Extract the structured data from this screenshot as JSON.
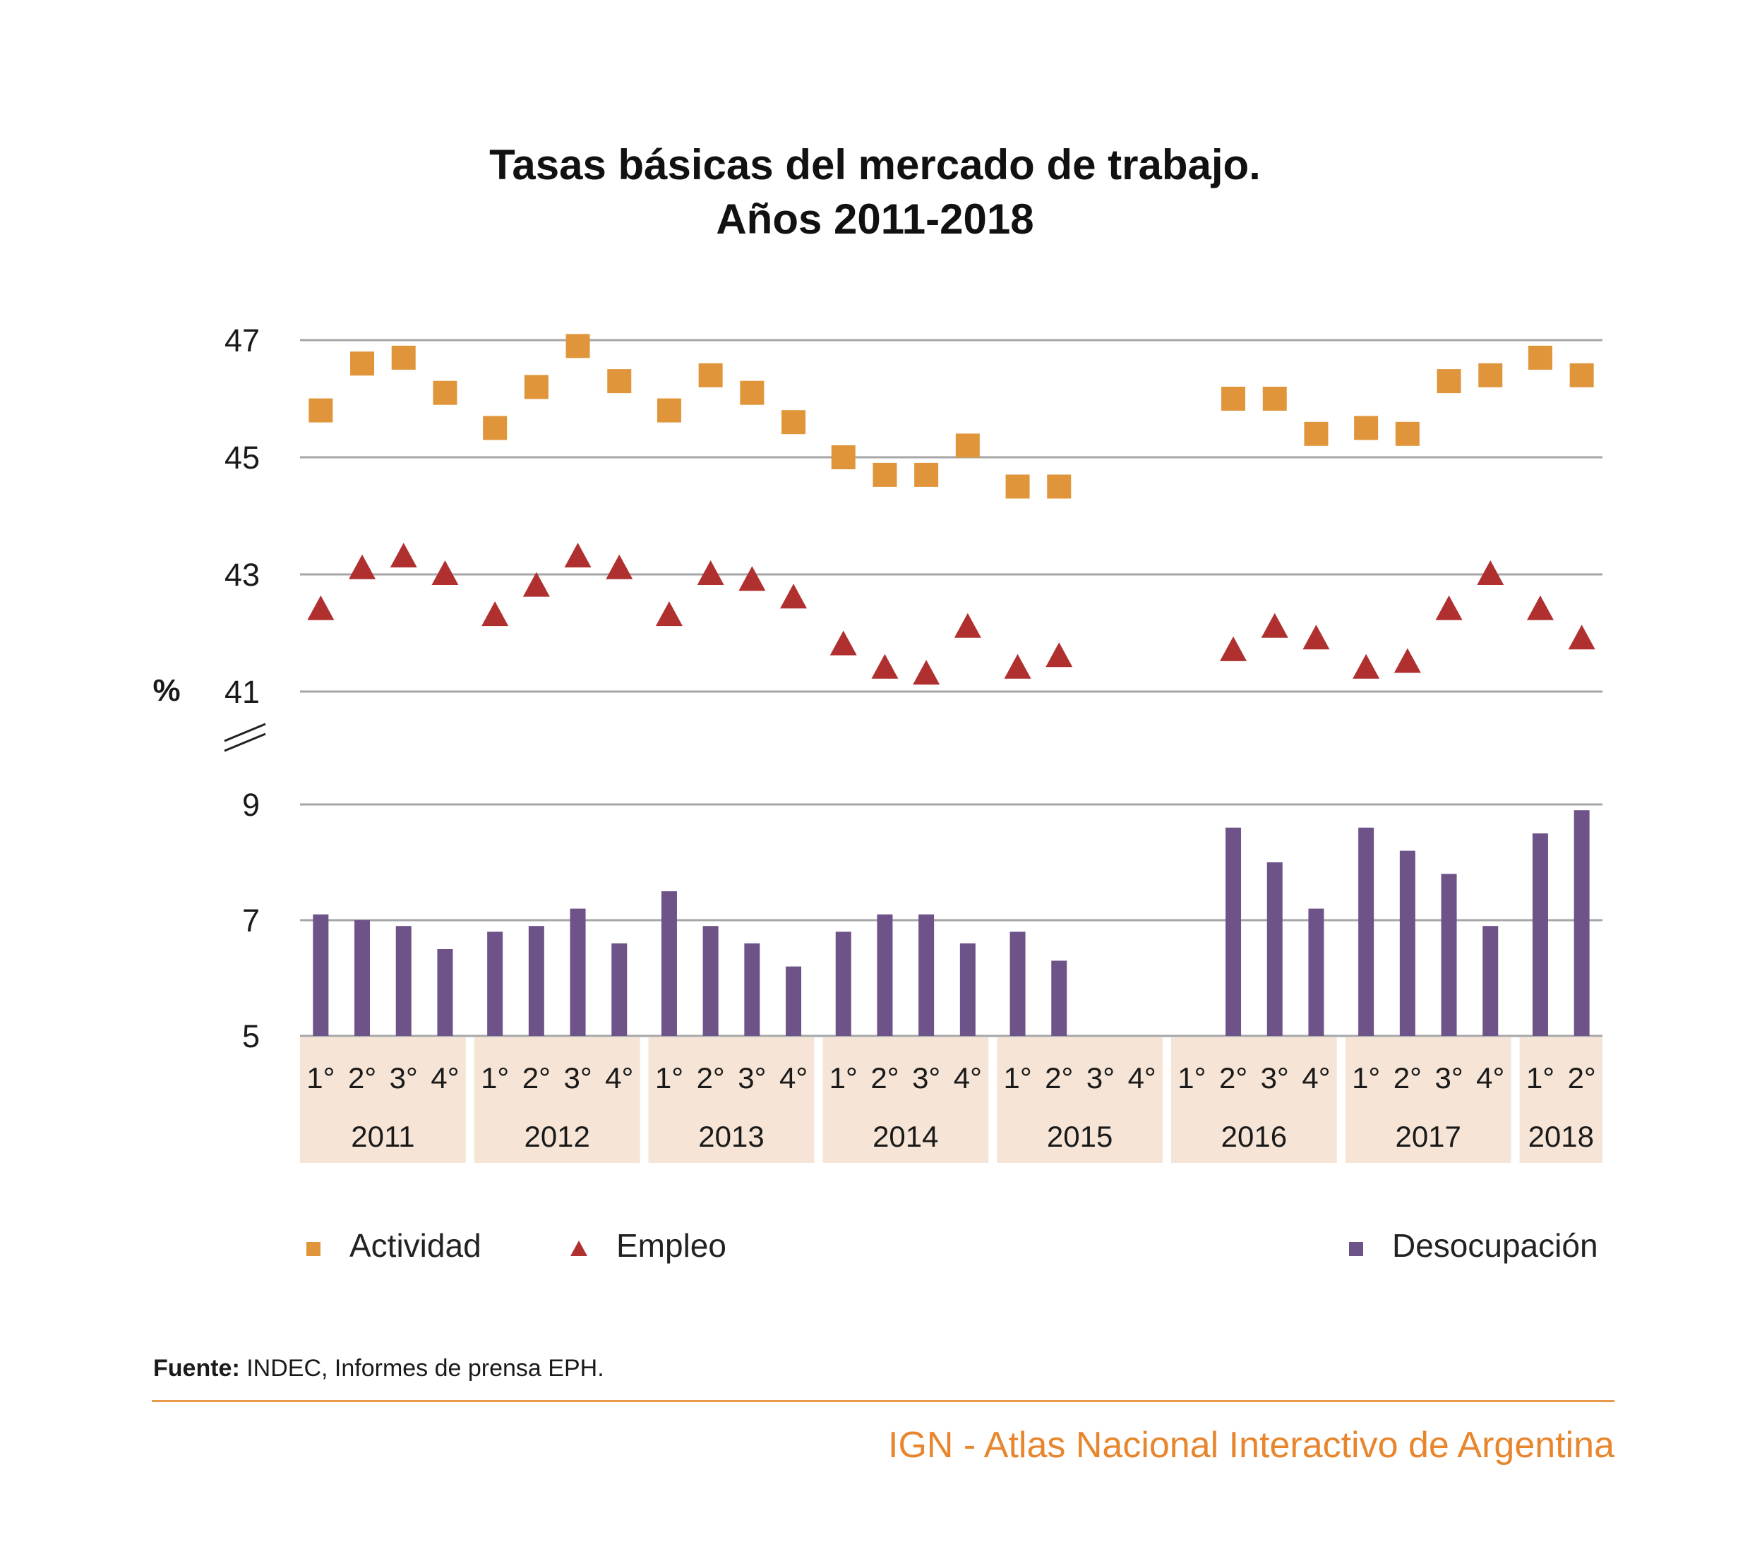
{
  "title_line1": "Tasas básicas del mercado de trabajo.",
  "title_line2": "Años 2011-2018",
  "ylabel": "%",
  "colors": {
    "actividad": "#e0953a",
    "empleo": "#b03030",
    "desocupacion": "#6e5388",
    "gridline": "#a6a6a6",
    "year_band": "#f6e5d6",
    "footer": "#e8862e"
  },
  "chart_data": {
    "type": "scatter+bar",
    "axis_break": true,
    "upper_panel": {
      "yticks": [
        "47",
        "45",
        "43",
        "41"
      ],
      "ylim": [
        41,
        47
      ]
    },
    "lower_panel": {
      "yticks": [
        "9",
        "7",
        "5"
      ],
      "ylim": [
        5,
        9
      ]
    },
    "years": [
      "2011",
      "2012",
      "2013",
      "2014",
      "2015",
      "2016",
      "2017",
      "2018"
    ],
    "quarter_labels": [
      "1°",
      "2°",
      "3°",
      "4°"
    ],
    "quarters_per_year": [
      4,
      4,
      4,
      4,
      4,
      4,
      4,
      2
    ],
    "series": [
      {
        "name": "Actividad",
        "marker": "square",
        "values": [
          45.8,
          46.6,
          46.7,
          46.1,
          45.5,
          46.2,
          46.9,
          46.3,
          45.8,
          46.4,
          46.1,
          45.6,
          45.0,
          44.7,
          44.7,
          45.2,
          44.5,
          44.5,
          null,
          null,
          null,
          46.0,
          46.0,
          45.4,
          45.5,
          45.4,
          46.3,
          46.4,
          46.7,
          46.4
        ]
      },
      {
        "name": "Empleo",
        "marker": "triangle",
        "values": [
          42.4,
          43.1,
          43.3,
          43.0,
          42.3,
          42.8,
          43.3,
          43.1,
          42.3,
          43.0,
          42.9,
          42.6,
          41.8,
          41.4,
          41.3,
          42.1,
          41.4,
          41.6,
          null,
          null,
          null,
          41.7,
          42.1,
          41.9,
          41.4,
          41.5,
          42.4,
          43.0,
          42.4,
          41.9
        ]
      },
      {
        "name": "Desocupación",
        "marker": "bar",
        "values": [
          7.1,
          7.0,
          6.9,
          6.5,
          6.8,
          6.9,
          7.2,
          6.6,
          7.5,
          6.9,
          6.6,
          6.2,
          6.8,
          7.1,
          7.1,
          6.6,
          6.8,
          6.3,
          null,
          null,
          null,
          8.6,
          8.0,
          7.2,
          8.6,
          8.2,
          7.8,
          6.9,
          8.5,
          8.9
        ]
      }
    ],
    "legend_position": "bottom",
    "grid": true
  },
  "source_label": "Fuente:",
  "source_text": " INDEC, Informes de prensa EPH.",
  "footer": "IGN - Atlas Nacional Interactivo de Argentina"
}
